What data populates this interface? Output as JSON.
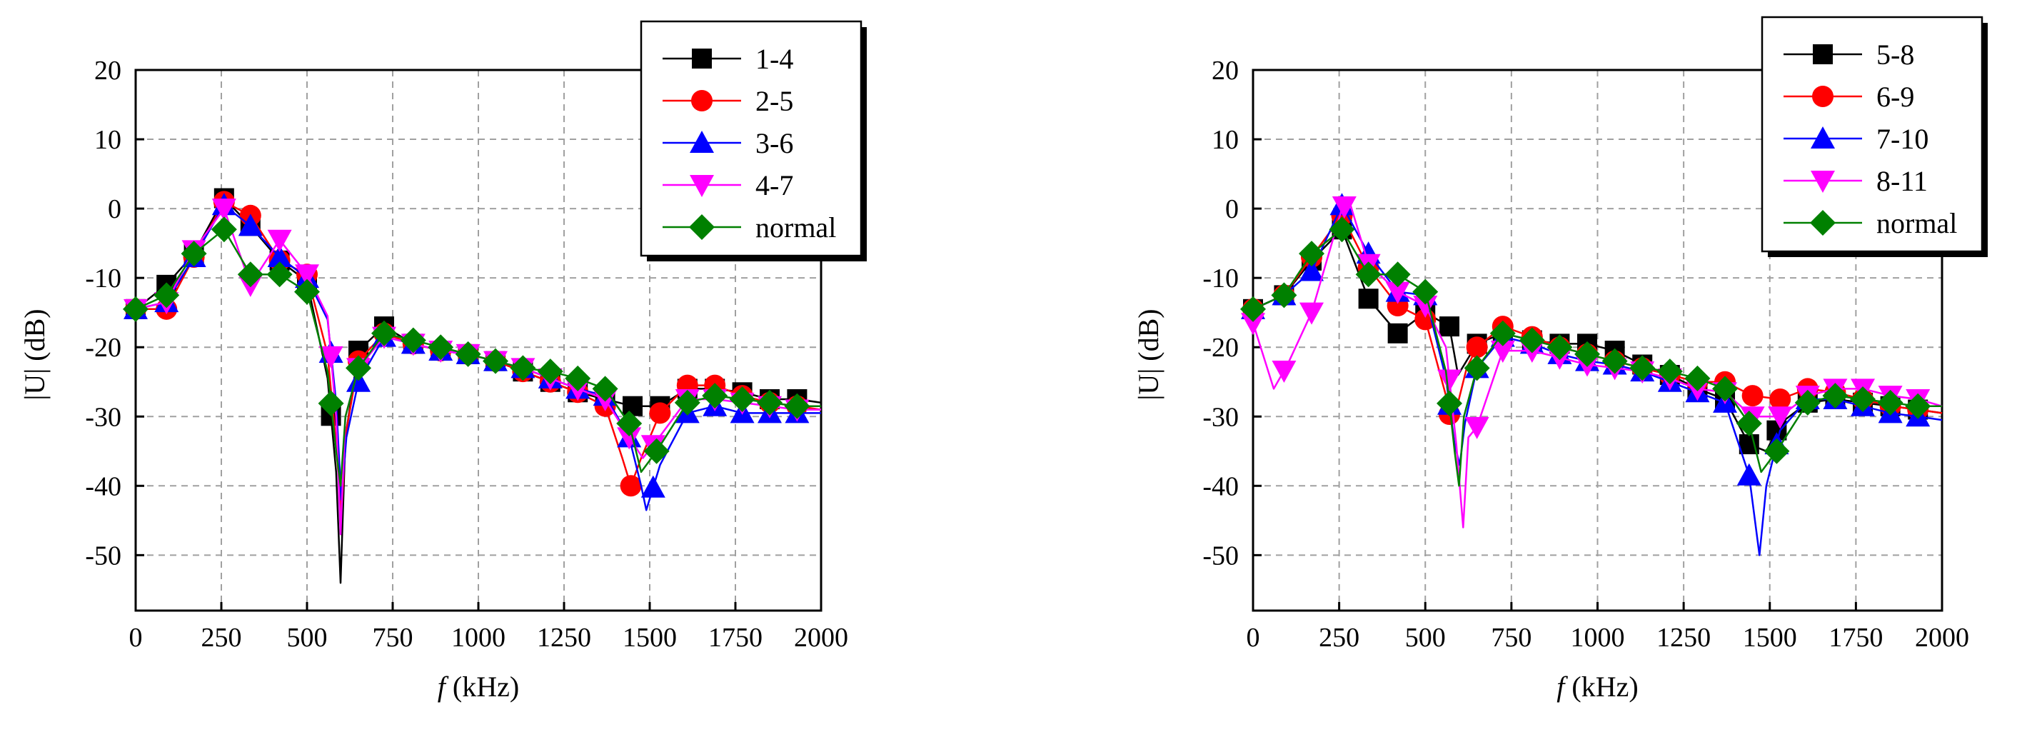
{
  "chart_data": [
    {
      "type": "line",
      "id": "left",
      "xlabel_var": "f",
      "xlabel_unit": " (kHz)",
      "ylabel": "|U| (dB)",
      "xlim": [
        0,
        2000
      ],
      "ylim": [
        -58,
        20
      ],
      "xticks": [
        0,
        250,
        500,
        750,
        1000,
        1250,
        1500,
        1750,
        2000
      ],
      "yticks": [
        20,
        10,
        0,
        -10,
        -20,
        -30,
        -40,
        -50
      ],
      "legend_position": "top-right",
      "series": [
        {
          "name": "1-4",
          "color": "#000000",
          "marker": "square",
          "x": [
            0,
            90,
            170,
            258,
            335,
            420,
            500,
            560,
            585,
            598,
            612,
            650,
            725,
            810,
            890,
            970,
            1050,
            1130,
            1210,
            1290,
            1370,
            1450,
            1530,
            1610,
            1690,
            1770,
            1850,
            1930,
            2000
          ],
          "y": [
            -14.5,
            -11,
            -6.5,
            1.5,
            -2.5,
            -7.5,
            -10.5,
            -24.5,
            -38,
            -54,
            -33,
            -20.5,
            -17,
            -19.5,
            -20.5,
            -21,
            -22,
            -23.5,
            -25,
            -26.5,
            -27.5,
            -28.5,
            -28.5,
            -26,
            -26,
            -26.5,
            -27.5,
            -27.5,
            -28
          ],
          "marker_x": [
            0,
            90,
            170,
            258,
            335,
            420,
            500,
            570,
            650,
            725,
            810,
            890,
            970,
            1050,
            1130,
            1210,
            1290,
            1370,
            1450,
            1530,
            1610,
            1690,
            1770,
            1850,
            1930
          ]
        },
        {
          "name": "2-5",
          "color": "#ff0000",
          "marker": "circle",
          "x": [
            0,
            90,
            170,
            258,
            335,
            420,
            500,
            560,
            585,
            600,
            615,
            650,
            725,
            810,
            890,
            970,
            1050,
            1130,
            1210,
            1290,
            1370,
            1420,
            1445,
            1475,
            1530,
            1610,
            1690,
            1770,
            1850,
            1930,
            2000
          ],
          "y": [
            -14.5,
            -14.5,
            -7,
            1,
            -1,
            -7.5,
            -9.5,
            -21,
            -34,
            -44,
            -32,
            -22,
            -18,
            -19.5,
            -20.5,
            -21,
            -22,
            -23.5,
            -25,
            -26.5,
            -28.5,
            -36,
            -40,
            -36,
            -29.5,
            -25.5,
            -25.5,
            -27,
            -28,
            -28.5,
            -29
          ],
          "marker_x": [
            0,
            90,
            170,
            258,
            335,
            420,
            500,
            650,
            725,
            810,
            890,
            970,
            1050,
            1130,
            1210,
            1290,
            1370,
            1445,
            1530,
            1610,
            1690,
            1770,
            1850,
            1930
          ]
        },
        {
          "name": "3-6",
          "color": "#0000ff",
          "marker": "triangle-up",
          "x": [
            0,
            90,
            170,
            258,
            335,
            420,
            500,
            560,
            585,
            600,
            615,
            650,
            725,
            810,
            890,
            970,
            1050,
            1130,
            1210,
            1290,
            1370,
            1440,
            1475,
            1490,
            1530,
            1610,
            1690,
            1770,
            1850,
            1930,
            2000
          ],
          "y": [
            -14.5,
            -13.5,
            -7,
            0.5,
            -2.5,
            -7,
            -10,
            -16,
            -28,
            -42,
            -33,
            -25,
            -18.5,
            -19.5,
            -20.5,
            -21,
            -22,
            -23,
            -24.5,
            -26,
            -27,
            -33,
            -40,
            -43.5,
            -37,
            -29.5,
            -28.5,
            -29.5,
            -29.5,
            -29.5,
            -29.5
          ],
          "marker_x": [
            0,
            90,
            170,
            258,
            335,
            420,
            500,
            570,
            650,
            725,
            810,
            890,
            970,
            1050,
            1130,
            1210,
            1290,
            1370,
            1440,
            1510,
            1610,
            1690,
            1770,
            1850,
            1930
          ]
        },
        {
          "name": "4-7",
          "color": "#ff00ff",
          "marker": "triangle-down",
          "x": [
            0,
            90,
            170,
            258,
            335,
            420,
            500,
            560,
            585,
            598,
            612,
            650,
            725,
            810,
            890,
            970,
            1050,
            1130,
            1210,
            1290,
            1370,
            1440,
            1480,
            1520,
            1610,
            1690,
            1770,
            1850,
            1930,
            2000
          ],
          "y": [
            -14.5,
            -13.5,
            -6,
            0,
            -11,
            -4.5,
            -9.5,
            -15.5,
            -30,
            -47,
            -30,
            -23,
            -18.5,
            -19.5,
            -20.5,
            -21,
            -22,
            -23,
            -24.5,
            -26,
            -27.5,
            -33,
            -36,
            -33.5,
            -27.5,
            -27.5,
            -28,
            -28.5,
            -29,
            -29
          ],
          "marker_x": [
            0,
            90,
            170,
            258,
            335,
            420,
            500,
            570,
            650,
            725,
            810,
            890,
            970,
            1050,
            1130,
            1210,
            1290,
            1370,
            1440,
            1510,
            1610,
            1690,
            1770,
            1850,
            1930
          ]
        },
        {
          "name": "normal",
          "color": "#008000",
          "marker": "diamond",
          "x": [
            0,
            90,
            170,
            258,
            335,
            420,
            500,
            560,
            585,
            598,
            612,
            650,
            725,
            810,
            890,
            970,
            1050,
            1130,
            1210,
            1290,
            1370,
            1440,
            1475,
            1520,
            1610,
            1690,
            1770,
            1850,
            1930,
            2000
          ],
          "y": [
            -14.5,
            -12.5,
            -6.5,
            -3,
            -9.5,
            -9.5,
            -12,
            -23.5,
            -35,
            -40,
            -30,
            -23,
            -18,
            -19,
            -20,
            -21,
            -22,
            -23,
            -23.5,
            -24.5,
            -26,
            -31,
            -38,
            -35,
            -28,
            -27,
            -27.5,
            -28,
            -28.5,
            -28.5
          ],
          "marker_x": [
            0,
            90,
            170,
            258,
            335,
            420,
            500,
            570,
            650,
            725,
            810,
            890,
            970,
            1050,
            1130,
            1210,
            1290,
            1370,
            1440,
            1520,
            1610,
            1690,
            1770,
            1850,
            1930
          ]
        }
      ]
    },
    {
      "type": "line",
      "id": "right",
      "xlabel_var": "f",
      "xlabel_unit": " (kHz)",
      "ylabel": "|U| (dB)",
      "xlim": [
        0,
        2000
      ],
      "ylim": [
        -58,
        20
      ],
      "xticks": [
        0,
        250,
        500,
        750,
        1000,
        1250,
        1500,
        1750,
        2000
      ],
      "yticks": [
        20,
        10,
        0,
        -10,
        -20,
        -30,
        -40,
        -50
      ],
      "legend_position": "top-right",
      "series": [
        {
          "name": "5-8",
          "color": "#000000",
          "marker": "square",
          "x": [
            0,
            90,
            170,
            258,
            335,
            420,
            500,
            570,
            595,
            650,
            725,
            810,
            890,
            970,
            1050,
            1130,
            1210,
            1290,
            1370,
            1440,
            1490,
            1530,
            1610,
            1690,
            1770,
            1850,
            1930,
            2000
          ],
          "y": [
            -14.5,
            -12.5,
            -7.5,
            -3,
            -13,
            -18,
            -15,
            -17,
            -24,
            -19.5,
            -18,
            -19,
            -19.5,
            -19.5,
            -20.5,
            -22.5,
            -24,
            -26,
            -27.5,
            -34,
            -35,
            -31,
            -28,
            -27.5,
            -28,
            -28.5,
            -29,
            -29.5
          ],
          "marker_x": [
            0,
            90,
            170,
            258,
            335,
            420,
            500,
            570,
            650,
            725,
            810,
            890,
            970,
            1050,
            1130,
            1210,
            1290,
            1370,
            1440,
            1520,
            1610,
            1690,
            1770,
            1850,
            1930
          ]
        },
        {
          "name": "6-9",
          "color": "#ff0000",
          "marker": "circle",
          "x": [
            0,
            90,
            170,
            258,
            335,
            420,
            500,
            560,
            575,
            590,
            620,
            650,
            725,
            810,
            890,
            970,
            1050,
            1130,
            1210,
            1290,
            1370,
            1450,
            1530,
            1610,
            1690,
            1770,
            1850,
            1930,
            2000
          ],
          "y": [
            -14.5,
            -12.5,
            -7,
            -1,
            -8.5,
            -14,
            -16,
            -27,
            -31,
            -29,
            -23,
            -20,
            -17,
            -18.5,
            -20,
            -21,
            -22,
            -23,
            -24,
            -25,
            -25,
            -27,
            -27.5,
            -26,
            -26.5,
            -27.5,
            -28.5,
            -29,
            -29.5
          ],
          "marker_x": [
            0,
            90,
            170,
            258,
            335,
            420,
            500,
            570,
            650,
            725,
            810,
            890,
            970,
            1050,
            1130,
            1210,
            1290,
            1370,
            1450,
            1530,
            1610,
            1690,
            1770,
            1850,
            1930
          ]
        },
        {
          "name": "7-10",
          "color": "#0000ff",
          "marker": "triangle-up",
          "x": [
            0,
            90,
            170,
            258,
            335,
            420,
            500,
            560,
            585,
            600,
            615,
            650,
            725,
            810,
            890,
            970,
            1050,
            1130,
            1210,
            1290,
            1370,
            1440,
            1470,
            1490,
            1530,
            1610,
            1690,
            1770,
            1850,
            1930,
            2000
          ],
          "y": [
            -14.5,
            -12.5,
            -9,
            0.5,
            -6.5,
            -12,
            -12.5,
            -24.5,
            -34,
            -37,
            -31,
            -23,
            -18.5,
            -19.5,
            -21,
            -22,
            -22.5,
            -23.5,
            -25,
            -26.5,
            -28,
            -38.5,
            -50,
            -40,
            -32,
            -27.5,
            -27.5,
            -28.5,
            -29.5,
            -30,
            -30.5
          ],
          "marker_x": [
            0,
            90,
            170,
            258,
            335,
            420,
            500,
            570,
            650,
            725,
            810,
            890,
            970,
            1050,
            1130,
            1210,
            1290,
            1370,
            1440,
            1520,
            1610,
            1690,
            1770,
            1850,
            1930
          ]
        },
        {
          "name": "8-11",
          "color": "#ff00ff",
          "marker": "triangle-down",
          "x": [
            0,
            60,
            100,
            170,
            258,
            280,
            335,
            420,
            500,
            560,
            590,
            610,
            625,
            650,
            725,
            810,
            890,
            970,
            1050,
            1130,
            1210,
            1290,
            1370,
            1450,
            1530,
            1610,
            1690,
            1770,
            1850,
            1930,
            2000
          ],
          "y": [
            -16.5,
            -26,
            -22.5,
            -15,
            0,
            1,
            -8,
            -12,
            -14,
            -20,
            -34,
            -46,
            -33,
            -31.5,
            -20.5,
            -20.5,
            -21.5,
            -22.5,
            -23,
            -23.5,
            -24.5,
            -26,
            -26.5,
            -30,
            -30,
            -27,
            -26,
            -26,
            -27,
            -27.5,
            -28.5
          ],
          "marker_x": [
            0,
            90,
            170,
            265,
            335,
            420,
            500,
            570,
            650,
            725,
            810,
            890,
            970,
            1050,
            1130,
            1210,
            1290,
            1370,
            1450,
            1530,
            1610,
            1690,
            1770,
            1850,
            1930
          ]
        },
        {
          "name": "normal",
          "color": "#008000",
          "marker": "diamond",
          "x": [
            0,
            90,
            170,
            258,
            335,
            420,
            500,
            560,
            585,
            598,
            612,
            650,
            725,
            810,
            890,
            970,
            1050,
            1130,
            1210,
            1290,
            1370,
            1440,
            1475,
            1520,
            1610,
            1690,
            1770,
            1850,
            1930,
            2000
          ],
          "y": [
            -14.5,
            -12.5,
            -6.5,
            -3,
            -9.5,
            -9.5,
            -12,
            -23.5,
            -35,
            -40,
            -30,
            -23,
            -18,
            -19,
            -20,
            -21,
            -22,
            -23,
            -23.5,
            -24.5,
            -26,
            -31,
            -38,
            -35,
            -28,
            -27,
            -27.5,
            -28,
            -28.5,
            -28.5
          ],
          "marker_x": [
            0,
            90,
            170,
            258,
            335,
            420,
            500,
            570,
            650,
            725,
            810,
            890,
            970,
            1050,
            1130,
            1210,
            1290,
            1370,
            1440,
            1520,
            1610,
            1690,
            1770,
            1850,
            1930
          ]
        }
      ]
    }
  ]
}
